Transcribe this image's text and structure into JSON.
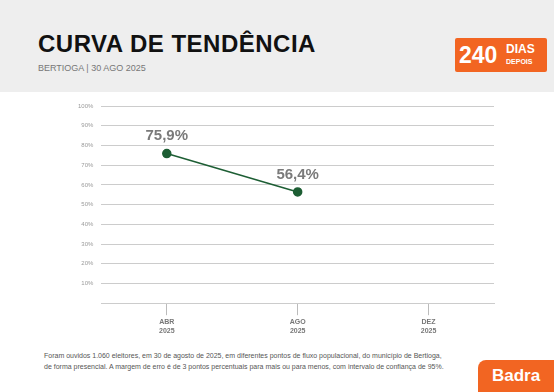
{
  "chart_data": {
    "type": "line",
    "title": "CURVA DE TENDÊNCIA",
    "subtitle": "BERTIOGA  |  30 AGO 2025",
    "categories": [
      [
        "ABR",
        "2025"
      ],
      [
        "AGO",
        "2025"
      ],
      [
        "DEZ",
        "2025"
      ]
    ],
    "values": [
      75.9,
      56.4,
      null
    ],
    "value_labels": [
      "75,9%",
      "56,4%",
      null
    ],
    "color": "#1d5e34",
    "marker": "circle",
    "line_style": "solid",
    "data_labels": true,
    "grid": true,
    "ylim": [
      0,
      100
    ],
    "yticks": [
      {
        "value": 10,
        "label": "10%"
      },
      {
        "value": 20,
        "label": "20%"
      },
      {
        "value": 30,
        "label": "30%"
      },
      {
        "value": 40,
        "label": "40%"
      },
      {
        "value": 50,
        "label": "50%"
      },
      {
        "value": 60,
        "label": "60%"
      },
      {
        "value": 70,
        "label": "70%"
      },
      {
        "value": 80,
        "label": "80%"
      },
      {
        "value": 90,
        "label": "90%"
      },
      {
        "value": 100,
        "label": "100%"
      }
    ]
  },
  "badge": {
    "number": "240",
    "line1": "DIAS",
    "line2": "DEPOIS"
  },
  "note": [
    "Foram ouvidos 1.060 eleitores, em 30 de agosto de 2025, em diferentes pontos de fluxo populacional, do município de Bertioga,",
    "de forma presencial. A margem de erro é de 3 pontos percentuais para mais ou para menos, com intervalo de confiança de 95%."
  ],
  "logo": "Badra"
}
